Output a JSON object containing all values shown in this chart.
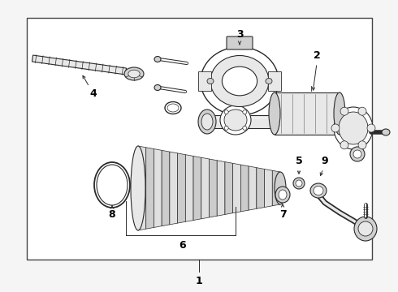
{
  "bg_color": "#f5f5f5",
  "border_color": "#555555",
  "fig_width": 4.9,
  "fig_height": 3.6,
  "dpi": 100,
  "part_color": "#2a2a2a",
  "light_fill": "#e8e8e8",
  "mid_fill": "#d0d0d0",
  "border": [
    0.07,
    0.09,
    0.935,
    0.935
  ]
}
